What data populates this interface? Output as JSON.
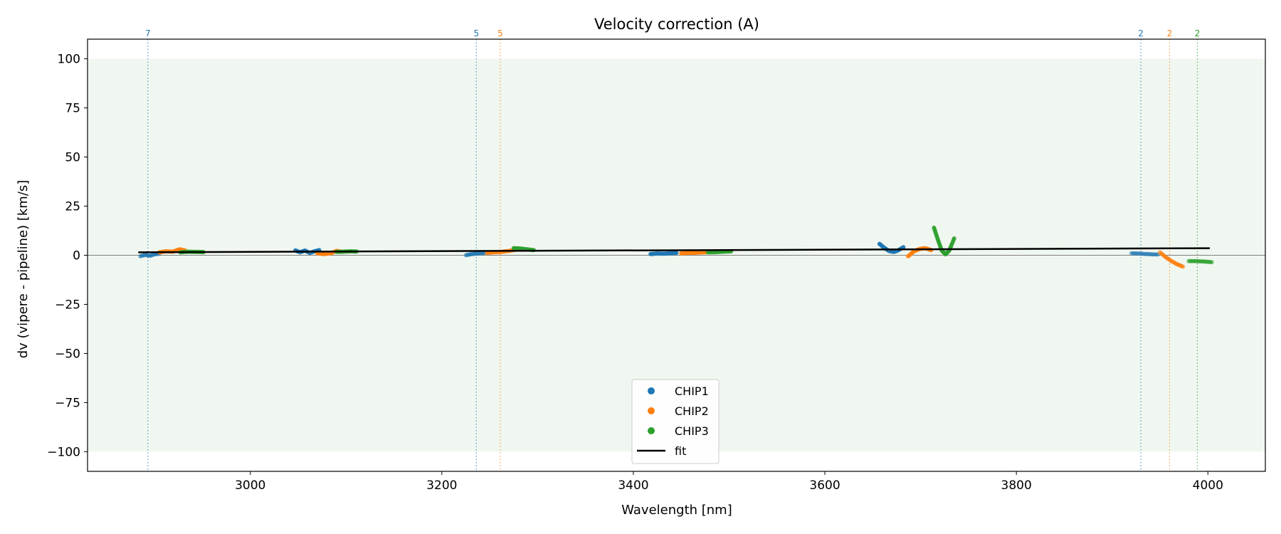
{
  "chart_data": {
    "type": "scatter",
    "title": "Velocity correction (A)",
    "xlabel": "Wavelength [nm]",
    "ylabel": "dv (vipere - pipeline) [km/s]",
    "xlim": [
      2830,
      4060
    ],
    "ylim": [
      -110,
      110
    ],
    "xticks": [
      3000,
      3200,
      3400,
      3600,
      3800,
      4000
    ],
    "yticks": [
      100,
      75,
      50,
      25,
      0,
      -25,
      -50,
      -75,
      -100
    ],
    "xtick_labels": [
      "3000",
      "3200",
      "3400",
      "3600",
      "3800",
      "4000"
    ],
    "ytick_labels": [
      "100",
      "75",
      "50",
      "25",
      "0",
      "−25",
      "−50",
      "−75",
      "−100"
    ],
    "shaded_band": {
      "y_min": -100,
      "y_max": 100,
      "color": "#e3f1e3"
    },
    "zero_line": 0,
    "colors": {
      "CHIP1": "#1f77b4",
      "CHIP2": "#ff7f0e",
      "CHIP3": "#2ca02c",
      "fit": "#000000"
    },
    "legend": {
      "position": "lower-center",
      "entries": [
        {
          "label": "CHIP1",
          "kind": "point",
          "color": "#1f77b4"
        },
        {
          "label": "CHIP2",
          "kind": "point",
          "color": "#ff7f0e"
        },
        {
          "label": "CHIP3",
          "kind": "point",
          "color": "#2ca02c"
        },
        {
          "label": "fit",
          "kind": "line",
          "color": "#000000"
        }
      ]
    },
    "order_markers": [
      {
        "x": 2893,
        "label": "7",
        "color": "#1f77b4"
      },
      {
        "x": 3236,
        "label": "5",
        "color": "#1f77b4"
      },
      {
        "x": 3261,
        "label": "5",
        "color": "#ff7f0e"
      },
      {
        "x": 3930,
        "label": "2",
        "color": "#1f77b4"
      },
      {
        "x": 3960,
        "label": "2",
        "color": "#ff7f0e"
      },
      {
        "x": 3989,
        "label": "2",
        "color": "#2ca02c"
      }
    ],
    "fit": {
      "name": "fit",
      "x": [
        2883,
        4002
      ],
      "y": [
        1.5,
        3.6
      ]
    },
    "series": [
      {
        "name": "CHIP1",
        "color": "#1f77b4",
        "segments": [
          {
            "opacity": 0.45,
            "x": [
              2885,
              2890,
              2895,
              2900,
              2905
            ],
            "y": [
              -0.5,
              0.2,
              -0.3,
              0.5,
              0.8
            ]
          },
          {
            "opacity": 0.85,
            "x": [
              3047,
              3052,
              3057,
              3062,
              3067,
              3072
            ],
            "y": [
              2.5,
              1.5,
              2.4,
              1.2,
              2.0,
              2.6
            ]
          },
          {
            "opacity": 0.45,
            "x": [
              3225,
              3230,
              3235,
              3240,
              3245
            ],
            "y": [
              0.0,
              0.5,
              0.8,
              1.0,
              1.2
            ]
          },
          {
            "opacity": 0.9,
            "x": [
              3418,
              3425,
              3432,
              3439,
              3445
            ],
            "y": [
              0.6,
              0.9,
              0.8,
              1.0,
              1.2
            ]
          },
          {
            "opacity": 0.9,
            "x": [
              3657,
              3662,
              3667,
              3672,
              3677,
              3682
            ],
            "y": [
              5.8,
              3.8,
              2.2,
              1.7,
              2.6,
              4.1
            ]
          },
          {
            "opacity": 0.45,
            "x": [
              3920,
              3927,
              3934,
              3941,
              3948
            ],
            "y": [
              1.0,
              0.9,
              0.7,
              0.5,
              0.4
            ]
          }
        ]
      },
      {
        "name": "CHIP2",
        "color": "#ff7f0e",
        "segments": [
          {
            "opacity": 0.9,
            "x": [
              2905,
              2912,
              2919,
              2926,
              2932
            ],
            "y": [
              1.5,
              2.0,
              1.8,
              3.0,
              2.4
            ]
          },
          {
            "opacity": 0.85,
            "x": [
              3070,
              3077,
              3084,
              3090,
              3095
            ],
            "y": [
              1.0,
              0.6,
              1.0,
              2.2,
              1.8
            ]
          },
          {
            "opacity": 0.8,
            "x": [
              3247,
              3255,
              3262,
              3270,
              3277
            ],
            "y": [
              1.2,
              1.5,
              1.7,
              2.2,
              2.8
            ]
          },
          {
            "opacity": 0.9,
            "x": [
              3450,
              3458,
              3466,
              3474,
              3480
            ],
            "y": [
              1.0,
              1.2,
              1.3,
              1.5,
              1.8
            ]
          },
          {
            "opacity": 0.9,
            "x": [
              3687,
              3693,
              3699,
              3705,
              3711
            ],
            "y": [
              -0.5,
              2.0,
              3.2,
              3.6,
              2.6
            ]
          },
          {
            "opacity": 0.6,
            "x": [
              3950,
              3956,
              3962,
              3968,
              3974
            ],
            "y": [
              1.5,
              -1.0,
              -3.0,
              -4.6,
              -5.8
            ]
          }
        ]
      },
      {
        "name": "CHIP3",
        "color": "#2ca02c",
        "segments": [
          {
            "opacity": 0.9,
            "x": [
              2927,
              2935,
              2943,
              2951
            ],
            "y": [
              1.5,
              1.8,
              1.7,
              1.6
            ]
          },
          {
            "opacity": 0.85,
            "x": [
              3090,
              3097,
              3104,
              3111
            ],
            "y": [
              1.7,
              1.8,
              2.0,
              1.9
            ]
          },
          {
            "opacity": 0.9,
            "x": [
              3275,
              3282,
              3289,
              3296
            ],
            "y": [
              3.6,
              3.4,
              3.0,
              2.6
            ]
          },
          {
            "opacity": 0.9,
            "x": [
              3478,
              3486,
              3494,
              3502
            ],
            "y": [
              1.5,
              1.6,
              1.8,
              2.0
            ]
          },
          {
            "opacity": 0.9,
            "x": [
              3714,
              3718,
              3722,
              3726,
              3730,
              3735
            ],
            "y": [
              14.0,
              8.0,
              2.5,
              0.5,
              2.5,
              8.5
            ]
          },
          {
            "opacity": 0.6,
            "x": [
              3980,
              3988,
              3996,
              4004
            ],
            "y": [
              -3.0,
              -3.0,
              -3.2,
              -3.5
            ]
          }
        ]
      }
    ]
  }
}
